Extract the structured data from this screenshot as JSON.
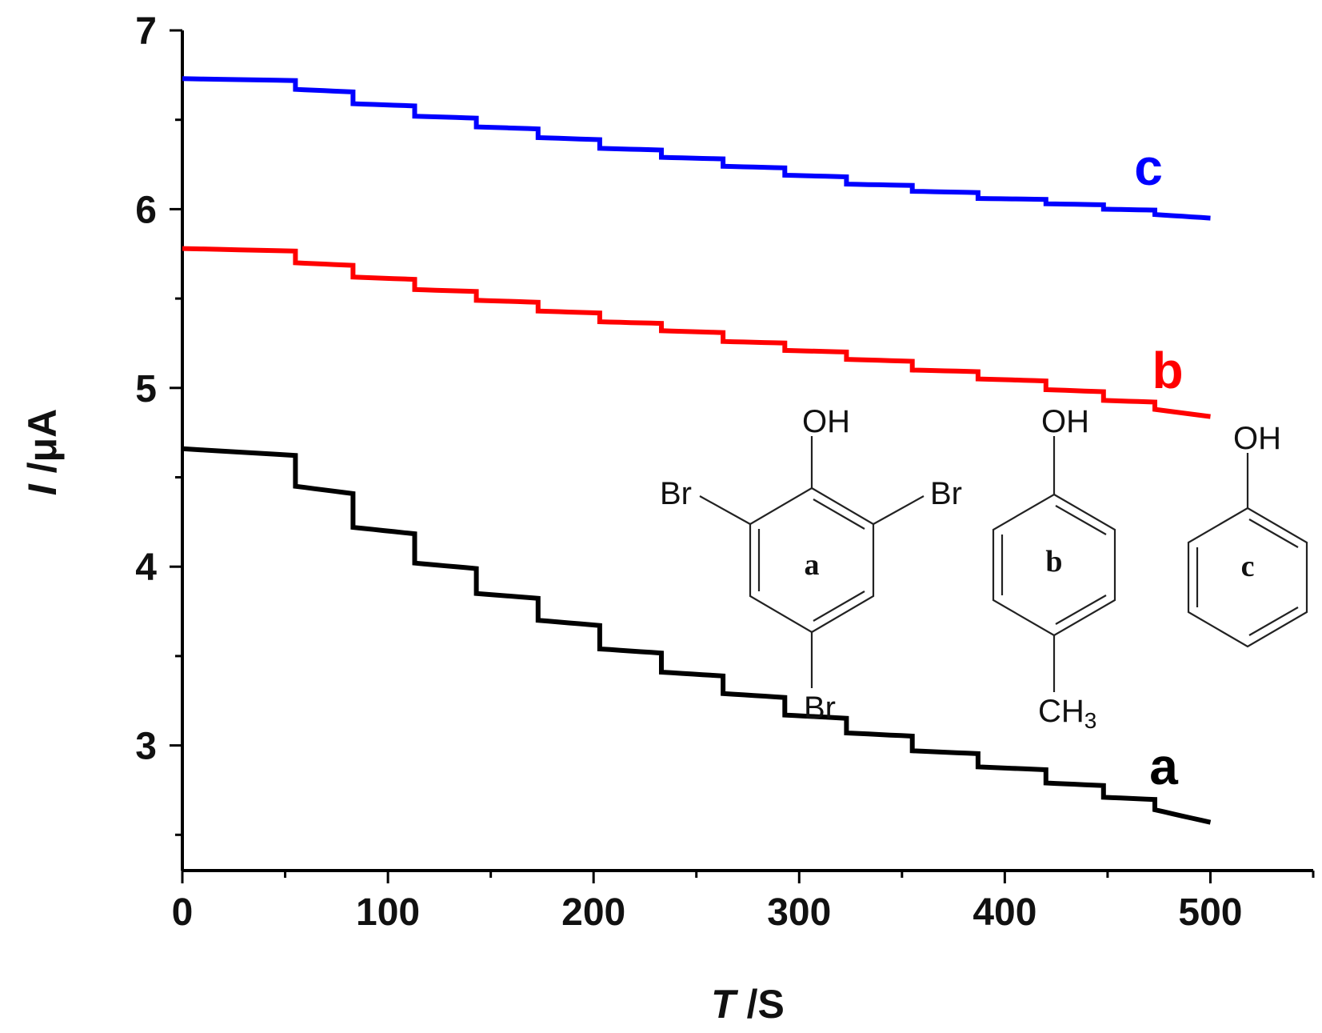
{
  "chart_data": {
    "type": "line",
    "xlabel": {
      "italic": "T",
      "rest": " /S"
    },
    "ylabel": {
      "italic": "I",
      "rest": " /μA"
    },
    "xlim": [
      0,
      550
    ],
    "ylim": [
      2.3,
      7.0
    ],
    "x_ticks": [
      0,
      100,
      200,
      300,
      400,
      500
    ],
    "y_ticks": [
      3,
      4,
      5,
      6,
      7
    ],
    "grid": false,
    "legend": "none",
    "step_times": [
      55,
      83,
      113,
      143,
      173,
      203,
      233,
      263,
      293,
      323,
      355,
      387,
      420,
      448,
      473
    ],
    "series": [
      {
        "name": "a",
        "color": "#000000",
        "start": 4.66,
        "end": 2.57,
        "levels": [
          4.45,
          4.22,
          4.02,
          3.85,
          3.7,
          3.54,
          3.41,
          3.29,
          3.17,
          3.07,
          2.97,
          2.88,
          2.79,
          2.71,
          2.64
        ],
        "end_time": 500
      },
      {
        "name": "b",
        "color": "#ff0000",
        "start": 5.78,
        "end": 4.84,
        "levels": [
          5.7,
          5.62,
          5.55,
          5.49,
          5.43,
          5.37,
          5.32,
          5.26,
          5.21,
          5.16,
          5.1,
          5.05,
          4.99,
          4.93,
          4.88
        ],
        "end_time": 500
      },
      {
        "name": "c",
        "color": "#0000ff",
        "start": 6.73,
        "end": 5.95,
        "levels": [
          6.67,
          6.59,
          6.52,
          6.46,
          6.4,
          6.34,
          6.29,
          6.24,
          6.19,
          6.14,
          6.1,
          6.06,
          6.03,
          6.0,
          5.97
        ],
        "end_time": 500
      }
    ],
    "series_labels": [
      {
        "text": "a",
        "color": "#000000"
      },
      {
        "text": "b",
        "color": "#ff0000"
      },
      {
        "text": "c",
        "color": "#0000ff"
      }
    ]
  },
  "structures": {
    "a": {
      "oh": "OH",
      "br_left": "Br",
      "br_right": "Br",
      "br_bottom": "Br",
      "ring_label": "a"
    },
    "b": {
      "oh": "OH",
      "ch3_main": "CH",
      "ch3_sub": "3",
      "ring_label": "b"
    },
    "c": {
      "oh": "OH",
      "ring_label": "c"
    }
  }
}
